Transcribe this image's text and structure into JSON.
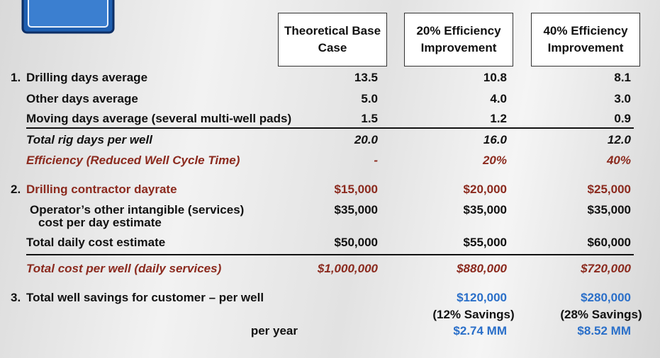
{
  "table": {
    "columns": [
      "Theoretical Base Case",
      "20% Efficiency Improvement",
      "40% Efficiency Improvement"
    ],
    "rows": [
      {
        "number": "1.",
        "label": "Drilling days average",
        "values": [
          "13.5",
          "10.8",
          "8.1"
        ]
      },
      {
        "label": "Other days average",
        "values": [
          "5.0",
          "4.0",
          "3.0"
        ]
      },
      {
        "label": "Moving days average (several multi-well pads)",
        "values": [
          "1.5",
          "1.2",
          "0.9"
        ]
      },
      {
        "label": "Total rig days per well",
        "values": [
          "20.0",
          "16.0",
          "12.0"
        ]
      },
      {
        "label": "Efficiency (Reduced Well Cycle Time)",
        "values": [
          "-",
          "20%",
          "40%"
        ]
      },
      {
        "number": "2.",
        "label": "Drilling contractor dayrate",
        "values": [
          "$15,000",
          "$20,000",
          "$25,000"
        ]
      },
      {
        "label": [
          "Operator’s other intangible (services)",
          "cost per day estimate"
        ],
        "values": [
          "$35,000",
          "$35,000",
          "$35,000"
        ]
      },
      {
        "label": "Total daily cost estimate",
        "values": [
          "$50,000",
          "$55,000",
          "$60,000"
        ]
      },
      {
        "label": "Total cost per well (daily services)",
        "values": [
          "$1,000,000",
          "$880,000",
          "$720,000"
        ]
      },
      {
        "number": "3.",
        "label": "Total well savings for customer – per well",
        "values": [
          null,
          "$120,000",
          "$280,000"
        ],
        "notes": [
          null,
          "(12% Savings)",
          "(28% Savings)"
        ]
      },
      {
        "label": "per year",
        "values": [
          null,
          "$2.74 MM",
          "$8.52 MM"
        ]
      }
    ]
  }
}
